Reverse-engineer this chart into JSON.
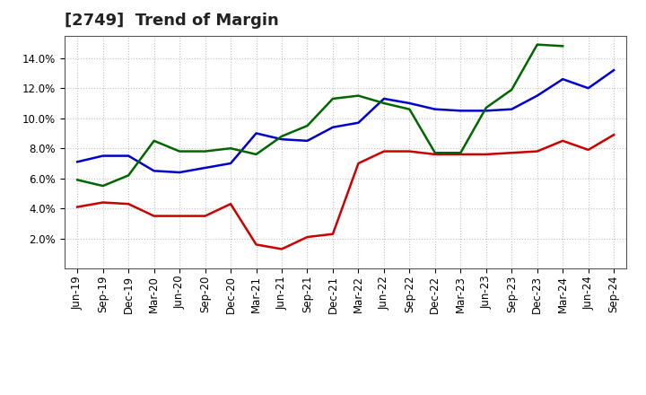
{
  "title": "[2749]  Trend of Margin",
  "x_labels": [
    "Jun-19",
    "Sep-19",
    "Dec-19",
    "Mar-20",
    "Jun-20",
    "Sep-20",
    "Dec-20",
    "Mar-21",
    "Jun-21",
    "Sep-21",
    "Dec-21",
    "Mar-22",
    "Jun-22",
    "Sep-22",
    "Dec-22",
    "Mar-23",
    "Jun-23",
    "Sep-23",
    "Dec-23",
    "Mar-24",
    "Jun-24",
    "Sep-24"
  ],
  "ordinary_income": [
    7.1,
    7.5,
    7.5,
    6.5,
    6.4,
    6.7,
    7.0,
    9.0,
    8.6,
    8.5,
    9.4,
    9.7,
    11.3,
    11.0,
    10.6,
    10.5,
    10.5,
    10.6,
    11.5,
    12.6,
    12.0,
    13.2
  ],
  "net_income": [
    4.1,
    4.4,
    4.3,
    3.5,
    3.5,
    3.5,
    4.3,
    1.6,
    1.3,
    2.1,
    2.3,
    7.0,
    7.8,
    7.8,
    7.6,
    7.6,
    7.6,
    7.7,
    7.8,
    8.5,
    7.9,
    8.9
  ],
  "operating_cashflow": [
    5.9,
    5.5,
    6.2,
    8.5,
    7.8,
    7.8,
    8.0,
    7.6,
    8.8,
    9.5,
    11.3,
    11.5,
    11.0,
    10.6,
    7.7,
    7.7,
    10.7,
    11.9,
    14.9,
    14.8,
    null,
    null
  ],
  "ylim": [
    0.0,
    15.5
  ],
  "yticks": [
    2.0,
    4.0,
    6.0,
    8.0,
    10.0,
    12.0,
    14.0
  ],
  "colors": {
    "ordinary_income": "#0000cc",
    "net_income": "#cc0000",
    "operating_cashflow": "#006600"
  },
  "background_color": "#ffffff",
  "grid_color": "#bbbbbb",
  "title_fontsize": 13,
  "tick_fontsize": 8.5,
  "legend_fontsize": 9
}
